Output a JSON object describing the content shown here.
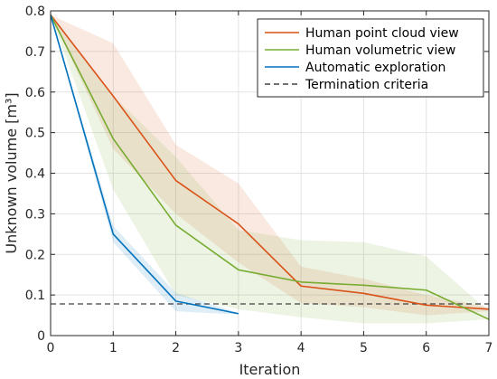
{
  "chart_data": {
    "type": "line",
    "title": "",
    "xlabel": "Iteration",
    "ylabel": "Unknown volume [m³]",
    "xlim": [
      0,
      7
    ],
    "ylim": [
      0,
      0.8
    ],
    "xticks": [
      0,
      1,
      2,
      3,
      4,
      5,
      6,
      7
    ],
    "yticks": [
      0,
      0.1,
      0.2,
      0.3,
      0.4,
      0.5,
      0.6,
      0.7,
      0.8
    ],
    "xtick_labels": [
      "0",
      "1",
      "2",
      "3",
      "4",
      "5",
      "6",
      "7"
    ],
    "ytick_labels": [
      "0",
      "0.1",
      "0.2",
      "0.3",
      "0.4",
      "0.5",
      "0.6",
      "0.7",
      "0.8"
    ],
    "grid": true,
    "legend_position": "top-right",
    "series": [
      {
        "name": "Human point cloud view",
        "color": "#d95319",
        "x": [
          0,
          1,
          2,
          3,
          4,
          5,
          6,
          7
        ],
        "values": [
          0.79,
          0.59,
          0.382,
          0.275,
          0.122,
          0.104,
          0.075,
          0.065
        ],
        "band_upper": [
          0.79,
          0.72,
          0.47,
          0.375,
          0.17,
          0.14,
          0.1,
          0.07
        ],
        "band_lower": [
          0.79,
          0.46,
          0.3,
          0.18,
          0.08,
          0.07,
          0.05,
          0.06
        ]
      },
      {
        "name": "Human volumetric view",
        "color": "#77ac30",
        "x": [
          0,
          1,
          2,
          3,
          4,
          5,
          6,
          7
        ],
        "values": [
          0.79,
          0.485,
          0.272,
          0.162,
          0.132,
          0.124,
          0.112,
          0.04
        ],
        "band_upper": [
          0.79,
          0.59,
          0.44,
          0.26,
          0.235,
          0.23,
          0.195,
          0.06
        ],
        "band_lower": [
          0.79,
          0.36,
          0.1,
          0.065,
          0.045,
          0.03,
          0.03,
          0.04
        ]
      },
      {
        "name": "Automatic exploration",
        "color": "#0072bd",
        "x": [
          0,
          1,
          2,
          3
        ],
        "values": [
          0.79,
          0.25,
          0.085,
          0.054
        ],
        "band_upper": [
          0.79,
          0.27,
          0.105,
          0.056
        ],
        "band_lower": [
          0.79,
          0.23,
          0.06,
          0.052
        ]
      }
    ],
    "reference_lines": [
      {
        "name": "Termination criteria",
        "y": 0.078,
        "color": "#404040",
        "style": "dashed"
      }
    ]
  }
}
